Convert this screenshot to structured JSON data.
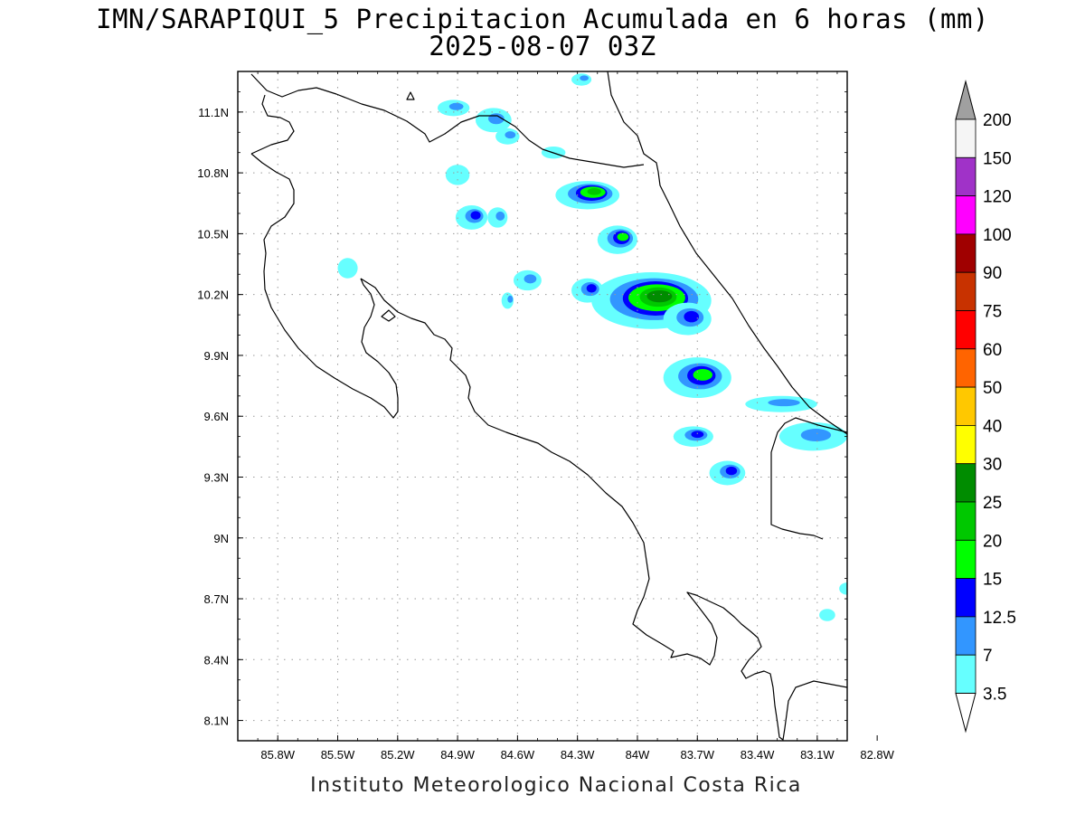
{
  "title": {
    "line1": "IMN/SARAPIQUI_5 Precipitacion Acumulada en 6 horas (mm)",
    "line2": "2025-08-07 03Z"
  },
  "credit": "Instituto Meteorologico Nacional Costa Rica",
  "map": {
    "lon_range": [
      -86.0,
      -82.95
    ],
    "lat_range": [
      8.0,
      11.3
    ],
    "lon_ticks": [
      {
        "value": -85.8,
        "label": "85.8W"
      },
      {
        "value": -85.5,
        "label": "85.5W"
      },
      {
        "value": -85.2,
        "label": "85.2W"
      },
      {
        "value": -84.9,
        "label": "84.9W"
      },
      {
        "value": -84.6,
        "label": "84.6W"
      },
      {
        "value": -84.3,
        "label": "84.3W"
      },
      {
        "value": -84.0,
        "label": "84W"
      },
      {
        "value": -83.7,
        "label": "83.7W"
      },
      {
        "value": -83.4,
        "label": "83.4W"
      },
      {
        "value": -83.1,
        "label": "83.1W"
      },
      {
        "value": -82.8,
        "label": "82.8W"
      }
    ],
    "lat_ticks": [
      {
        "value": 11.1,
        "label": "11.1N"
      },
      {
        "value": 10.8,
        "label": "10.8N"
      },
      {
        "value": 10.5,
        "label": "10.5N"
      },
      {
        "value": 10.2,
        "label": "10.2N"
      },
      {
        "value": 9.9,
        "label": "9.9N"
      },
      {
        "value": 9.6,
        "label": "9.6N"
      },
      {
        "value": 9.3,
        "label": "9.3N"
      },
      {
        "value": 9.0,
        "label": "9N"
      },
      {
        "value": 8.7,
        "label": "8.7N"
      },
      {
        "value": 8.4,
        "label": "8.4N"
      },
      {
        "value": 8.1,
        "label": "8.1N"
      }
    ],
    "grid": true
  },
  "legend": {
    "units": "mm",
    "top_arrow_color": "#a0a0a0",
    "bottom_arrow_color": "#ffffff",
    "bins": [
      {
        "color": "#f5f5f5",
        "label": "200"
      },
      {
        "color": "#a032c8",
        "label": "150"
      },
      {
        "color": "#ff00ff",
        "label": "120"
      },
      {
        "color": "#a00000",
        "label": "100"
      },
      {
        "color": "#c83200",
        "label": "90"
      },
      {
        "color": "#ff0000",
        "label": "75"
      },
      {
        "color": "#ff6400",
        "label": "60"
      },
      {
        "color": "#ffc800",
        "label": "50"
      },
      {
        "color": "#ffff00",
        "label": "40"
      },
      {
        "color": "#008c00",
        "label": "30"
      },
      {
        "color": "#00c800",
        "label": "25"
      },
      {
        "color": "#00ff00",
        "label": "20"
      },
      {
        "color": "#0000ff",
        "label": "15"
      },
      {
        "color": "#3296ff",
        "label": "12.5"
      },
      {
        "color": "#66ffff",
        "label": "7"
      }
    ],
    "bottom_label": "3.5"
  },
  "rain_cells": [
    {
      "lon": -84.25,
      "lat": 10.69,
      "rx": 0.16,
      "ry": 0.07,
      "level": 5
    },
    {
      "lon": -84.1,
      "lat": 10.47,
      "rx": 0.1,
      "ry": 0.07,
      "level": 4
    },
    {
      "lon": -84.83,
      "lat": 10.58,
      "rx": 0.08,
      "ry": 0.06,
      "level": 3
    },
    {
      "lon": -84.7,
      "lat": 10.58,
      "rx": 0.05,
      "ry": 0.05,
      "level": 2
    },
    {
      "lon": -84.9,
      "lat": 10.79,
      "rx": 0.06,
      "ry": 0.05,
      "level": 1
    },
    {
      "lon": -84.55,
      "lat": 10.27,
      "rx": 0.07,
      "ry": 0.05,
      "level": 2
    },
    {
      "lon": -84.65,
      "lat": 10.17,
      "rx": 0.03,
      "ry": 0.04,
      "level": 2
    },
    {
      "lon": -83.93,
      "lat": 10.17,
      "rx": 0.3,
      "ry": 0.14,
      "level": 6
    },
    {
      "lon": -84.25,
      "lat": 10.22,
      "rx": 0.08,
      "ry": 0.06,
      "level": 3
    },
    {
      "lon": -83.75,
      "lat": 10.08,
      "rx": 0.12,
      "ry": 0.08,
      "level": 3
    },
    {
      "lon": -83.7,
      "lat": 9.79,
      "rx": 0.17,
      "ry": 0.1,
      "level": 4
    },
    {
      "lon": -83.55,
      "lat": 9.32,
      "rx": 0.09,
      "ry": 0.06,
      "level": 3
    },
    {
      "lon": -83.72,
      "lat": 9.5,
      "rx": 0.1,
      "ry": 0.05,
      "level": 3
    },
    {
      "lon": -83.28,
      "lat": 9.66,
      "rx": 0.18,
      "ry": 0.04,
      "level": 2
    },
    {
      "lon": -83.12,
      "lat": 9.5,
      "rx": 0.17,
      "ry": 0.07,
      "level": 2
    },
    {
      "lon": -84.72,
      "lat": 11.06,
      "rx": 0.09,
      "ry": 0.06,
      "level": 2
    },
    {
      "lon": -84.92,
      "lat": 11.12,
      "rx": 0.08,
      "ry": 0.04,
      "level": 2
    },
    {
      "lon": -84.65,
      "lat": 10.98,
      "rx": 0.06,
      "ry": 0.04,
      "level": 2
    },
    {
      "lon": -84.42,
      "lat": 10.9,
      "rx": 0.06,
      "ry": 0.03,
      "level": 1
    },
    {
      "lon": -85.45,
      "lat": 10.33,
      "rx": 0.05,
      "ry": 0.05,
      "level": 1
    },
    {
      "lon": -84.28,
      "lat": 11.26,
      "rx": 0.05,
      "ry": 0.03,
      "level": 2
    },
    {
      "lon": -82.95,
      "lat": 8.75,
      "rx": 0.04,
      "ry": 0.03,
      "level": 1
    },
    {
      "lon": -83.05,
      "lat": 8.62,
      "rx": 0.04,
      "ry": 0.03,
      "level": 1
    }
  ]
}
